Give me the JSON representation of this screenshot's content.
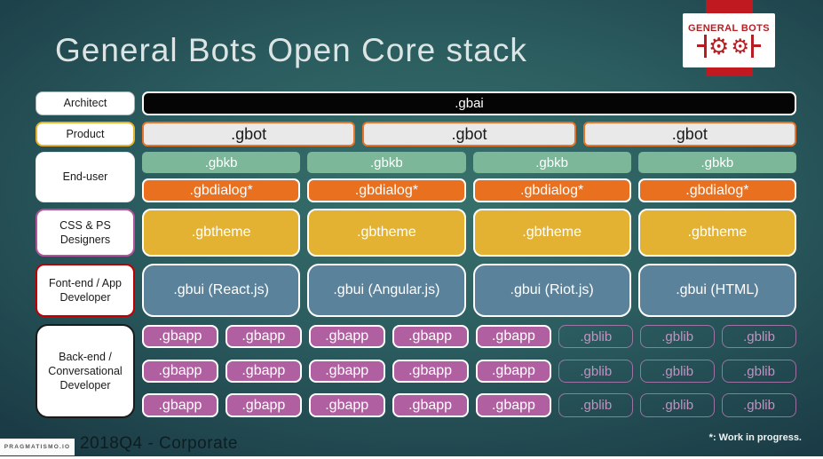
{
  "title": "General Bots Open Core stack",
  "logo": {
    "brand": "GENERAL BOTS",
    "icon": "two-gears"
  },
  "row_labels": [
    "Architect",
    "Product",
    "End-user",
    "CSS & PS Designers",
    "Font-end / App Developer",
    "Back-end / Conversational Developer"
  ],
  "stack": {
    "gbai": ".gbai",
    "gbot": [
      ".gbot",
      ".gbot",
      ".gbot"
    ],
    "gbkb": [
      ".gbkb",
      ".gbkb",
      ".gbkb",
      ".gbkb"
    ],
    "gbdialog": [
      ".gbdialog*",
      ".gbdialog*",
      ".gbdialog*",
      ".gbdialog*"
    ],
    "gbtheme": [
      ".gbtheme",
      ".gbtheme",
      ".gbtheme",
      ".gbtheme"
    ],
    "gbui": [
      ".gbui (React.js)",
      ".gbui (Angular.js)",
      ".gbui (Riot.js)",
      ".gbui (HTML)"
    ],
    "app_rows": [
      {
        "gbapp": [
          ".gbapp",
          ".gbapp",
          ".gbapp",
          ".gbapp",
          ".gbapp"
        ],
        "gblib": [
          ".gblib",
          ".gblib",
          ".gblib"
        ]
      },
      {
        "gbapp": [
          ".gbapp",
          ".gbapp",
          ".gbapp",
          ".gbapp",
          ".gbapp"
        ],
        "gblib": [
          ".gblib",
          ".gblib",
          ".gblib"
        ]
      },
      {
        "gbapp": [
          ".gbapp",
          ".gbapp",
          ".gbapp",
          ".gbapp",
          ".gbapp"
        ],
        "gblib": [
          ".gblib",
          ".gblib",
          ".gblib"
        ]
      }
    ]
  },
  "footer": {
    "badge": "PRAGMATISMO.IO",
    "left": "2018Q4 - Corporate",
    "right": "*: Work in progress."
  },
  "colors": {
    "background_center": "#38726c",
    "background_edge": "#1b3c46",
    "gbai_bg": "#050505",
    "gbot_bg": "#e9e9e9",
    "gbot_border": "#e8742c",
    "gbkb_bg": "#7db79a",
    "gbdialog_bg": "#e8701f",
    "gbtheme_bg": "#e3b233",
    "gbui_bg": "#5a829b",
    "gbapp_bg": "#b05fa0",
    "gblib_border": "#c77ebe",
    "logo_red": "#b51f24",
    "product_border": "#e7b32c",
    "css_label_border": "#b0549b",
    "frontend_label_border": "#c00000",
    "backend_label_border": "#1a1a1a"
  }
}
